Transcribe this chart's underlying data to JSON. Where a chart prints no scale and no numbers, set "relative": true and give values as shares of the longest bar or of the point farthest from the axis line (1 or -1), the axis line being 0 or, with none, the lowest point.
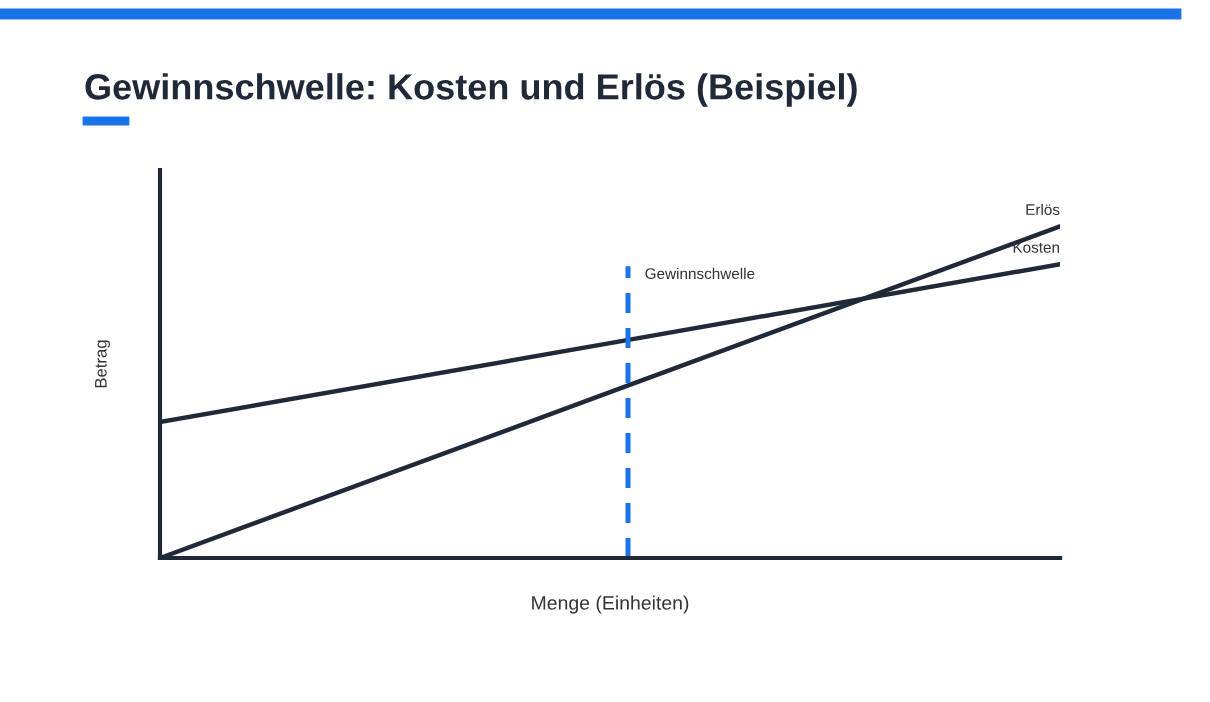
{
  "chart_data": {
    "type": "line",
    "title": "Gewinnschwelle: Kosten und Erlös (Beispiel)",
    "xlabel": "Menge (Einheiten)",
    "ylabel": "Betrag",
    "relative": true,
    "legend": false,
    "marker": "none",
    "line_style": "solid",
    "categories": [
      null,
      null,
      null
    ],
    "series": [
      {
        "name": "Erlös",
        "color": "#1f2937",
        "values": [
          0,
          0.5,
          1
        ]
      },
      {
        "name": "Kosten",
        "color": "#1f2937",
        "values": [
          0.41,
          0.648,
          0.886
        ]
      }
    ],
    "annotations": [
      "Gewinnschwelle"
    ]
  }
}
